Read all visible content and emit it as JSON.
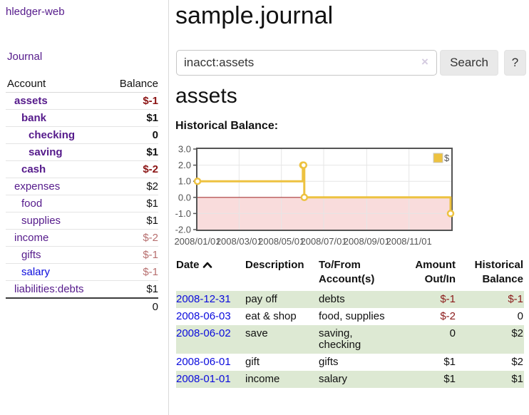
{
  "app": {
    "brand": "hledger-web"
  },
  "sidebar": {
    "journal_link": "Journal",
    "accounts_table": {
      "headers": [
        "Account",
        "Balance"
      ],
      "rows": [
        {
          "name": "assets",
          "indent": 1,
          "bold": true,
          "balance": "$-1",
          "balance_class": "neg-strong"
        },
        {
          "name": "bank",
          "indent": 2,
          "bold": true,
          "balance": "$1",
          "balance_class": "pos"
        },
        {
          "name": "checking",
          "indent": 3,
          "bold": true,
          "balance": "0",
          "balance_class": "pos"
        },
        {
          "name": "saving",
          "indent": 3,
          "bold": true,
          "balance": "$1",
          "balance_class": "pos"
        },
        {
          "name": "cash",
          "indent": 2,
          "bold": true,
          "balance": "$-2",
          "balance_class": "neg-strong"
        },
        {
          "name": "expenses",
          "indent": 1,
          "bold": false,
          "balance": "$2",
          "balance_class": "pos"
        },
        {
          "name": "food",
          "indent": 2,
          "bold": false,
          "balance": "$1",
          "balance_class": "pos"
        },
        {
          "name": "supplies",
          "indent": 2,
          "bold": false,
          "balance": "$1",
          "balance_class": "pos"
        },
        {
          "name": "income",
          "indent": 1,
          "bold": false,
          "balance": "$-2",
          "balance_class": "neg-dim"
        },
        {
          "name": "gifts",
          "indent": 2,
          "bold": false,
          "balance": "$-1",
          "balance_class": "neg-dim"
        },
        {
          "name": "salary",
          "indent": 2,
          "bold": false,
          "balance": "$-1",
          "balance_class": "neg-dim",
          "link_color": "blue"
        },
        {
          "name": "liabilities:debts",
          "indent": 1,
          "bold": false,
          "balance": "$1",
          "balance_class": "pos"
        }
      ],
      "total": "0"
    }
  },
  "header": {
    "title": "sample.journal"
  },
  "search": {
    "value": "inacct:assets",
    "clear_icon": "×",
    "button_label": "Search",
    "help_label": "?"
  },
  "main": {
    "account_title": "assets",
    "chart_label": "Historical Balance:"
  },
  "chart_data": {
    "type": "line",
    "steps": true,
    "title": "Historical Balance",
    "series": [
      {
        "name": "$",
        "color": "#edc240",
        "points": [
          [
            "2008-01-01",
            1
          ],
          [
            "2008-06-01",
            2
          ],
          [
            "2008-06-02",
            2
          ],
          [
            "2008-06-03",
            0
          ],
          [
            "2008-12-31",
            -1
          ]
        ]
      }
    ],
    "xlim": [
      "2008-01-01",
      "2009-01-01"
    ],
    "ylim": [
      -2,
      3
    ],
    "x_ticks": [
      "2008/01/01",
      "2008/03/01",
      "2008/05/01",
      "2008/07/01",
      "2008/09/01",
      "2008/11/01"
    ],
    "y_ticks": [
      -2,
      -1,
      0,
      1,
      2,
      3
    ],
    "y_tick_labels": [
      "-2.0",
      "-1.0",
      "0.0",
      "1.0",
      "2.0",
      "3.0"
    ],
    "grid": true,
    "legend": {
      "label": "$",
      "position": "top-right"
    },
    "zero_line_color": "#a83838",
    "negative_region_color": "#f9dcdc"
  },
  "register": {
    "columns": [
      "Date",
      "Description",
      "To/From Account(s)",
      "Amount Out/In",
      "Historical Balance"
    ],
    "sort": {
      "column": "Date",
      "indicator": "up"
    },
    "rows": [
      {
        "date": "2008-12-31",
        "description": "pay off",
        "accounts": "debts",
        "amount": "$-1",
        "amount_negative": true,
        "balance": "$-1",
        "balance_negative": true
      },
      {
        "date": "2008-06-03",
        "description": "eat & shop",
        "accounts": "food, supplies",
        "amount": "$-2",
        "amount_negative": true,
        "balance": "0",
        "balance_negative": false
      },
      {
        "date": "2008-06-02",
        "description": "save",
        "accounts": "saving, checking",
        "amount": "0",
        "amount_negative": false,
        "balance": "$2",
        "balance_negative": false
      },
      {
        "date": "2008-06-01",
        "description": "gift",
        "accounts": "gifts",
        "amount": "$1",
        "amount_negative": false,
        "balance": "$2",
        "balance_negative": false
      },
      {
        "date": "2008-01-01",
        "description": "income",
        "accounts": "salary",
        "amount": "$1",
        "amount_negative": false,
        "balance": "$1",
        "balance_negative": false
      }
    ]
  }
}
